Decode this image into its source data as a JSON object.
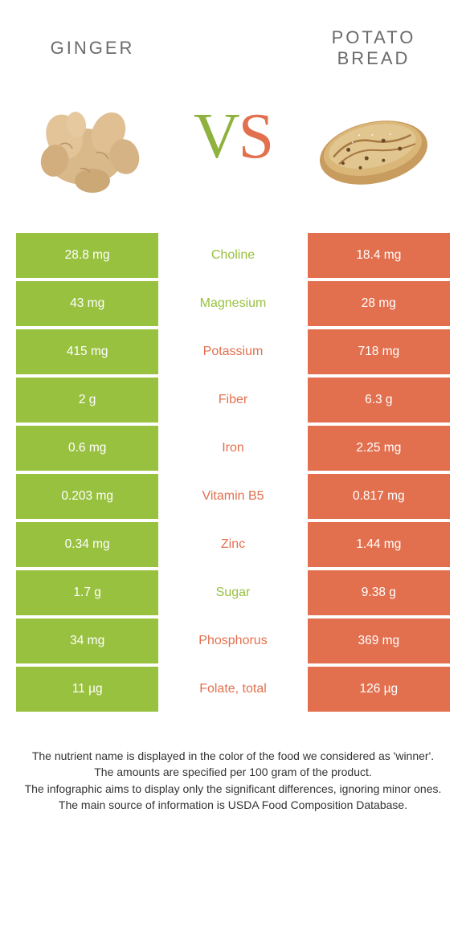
{
  "food_left": {
    "title": "GINGER"
  },
  "food_right": {
    "title": "POTATO\nBREAD"
  },
  "vs": {
    "v": "V",
    "s": "S"
  },
  "colors": {
    "left": "#99c140",
    "right": "#e2704f",
    "text_gray": "#6b6b6b",
    "bg": "#ffffff"
  },
  "rows": [
    {
      "nutrient": "Choline",
      "left": "28.8 mg",
      "right": "18.4 mg",
      "winner": "left"
    },
    {
      "nutrient": "Magnesium",
      "left": "43 mg",
      "right": "28 mg",
      "winner": "left"
    },
    {
      "nutrient": "Potassium",
      "left": "415 mg",
      "right": "718 mg",
      "winner": "right"
    },
    {
      "nutrient": "Fiber",
      "left": "2 g",
      "right": "6.3 g",
      "winner": "right"
    },
    {
      "nutrient": "Iron",
      "left": "0.6 mg",
      "right": "2.25 mg",
      "winner": "right"
    },
    {
      "nutrient": "Vitamin B5",
      "left": "0.203 mg",
      "right": "0.817 mg",
      "winner": "right"
    },
    {
      "nutrient": "Zinc",
      "left": "0.34 mg",
      "right": "1.44 mg",
      "winner": "right"
    },
    {
      "nutrient": "Sugar",
      "left": "1.7 g",
      "right": "9.38 g",
      "winner": "left"
    },
    {
      "nutrient": "Phosphorus",
      "left": "34 mg",
      "right": "369 mg",
      "winner": "right"
    },
    {
      "nutrient": "Folate, total",
      "left": "11 µg",
      "right": "126 µg",
      "winner": "right"
    }
  ],
  "footer": {
    "line1": "The nutrient name is displayed in the color of the food we considered as 'winner'.",
    "line2": "The amounts are specified per 100 gram of the product.",
    "line3": "The infographic aims to display only the significant differences, ignoring minor ones.",
    "line4": "The main source of information is USDA Food Composition Database."
  }
}
